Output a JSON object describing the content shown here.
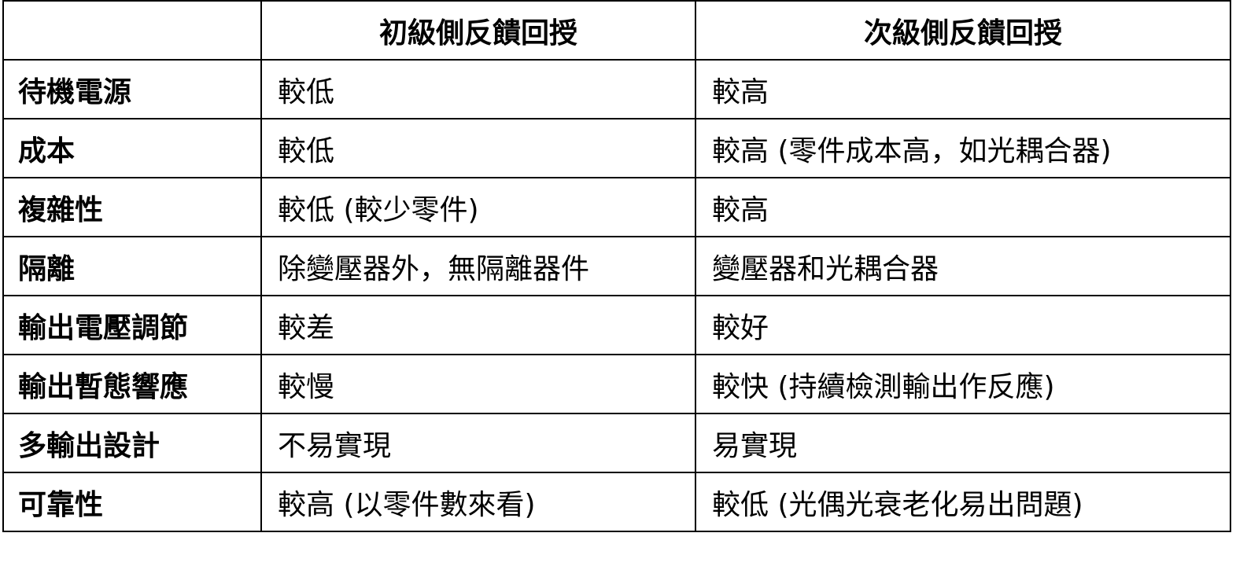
{
  "table": {
    "headers": [
      "",
      "初級側反饋回授",
      "次級側反饋回授"
    ],
    "rows": [
      {
        "label": "待機電源",
        "primary": "較低",
        "secondary": "較高"
      },
      {
        "label": "成本",
        "primary": "較低",
        "secondary": "較高 (零件成本高，如光耦合器)"
      },
      {
        "label": "複雜性",
        "primary": "較低 (較少零件)",
        "secondary": "較高"
      },
      {
        "label": "隔離",
        "primary": "除變壓器外，無隔離器件",
        "secondary": "變壓器和光耦合器"
      },
      {
        "label": "輸出電壓調節",
        "primary": "較差",
        "secondary": "較好"
      },
      {
        "label": "輸出暫態響應",
        "primary": "較慢",
        "secondary": "較快 (持續檢測輸出作反應)"
      },
      {
        "label": "多輸出設計",
        "primary": "不易實現",
        "secondary": "易實現"
      },
      {
        "label": "可靠性",
        "primary": "較高 (以零件數來看)",
        "secondary": "較低 (光偶光衰老化易出問題)"
      }
    ]
  }
}
